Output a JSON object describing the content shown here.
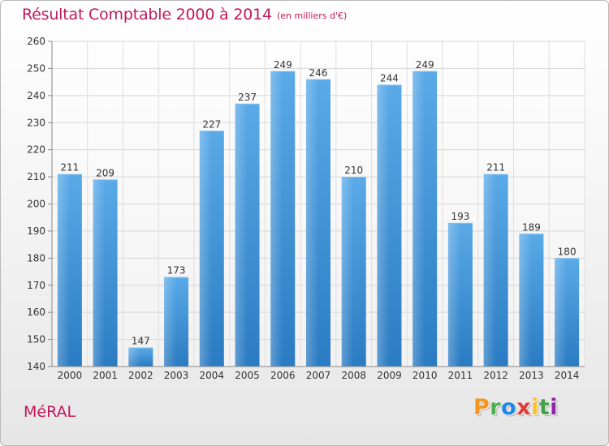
{
  "title": "Résultat Comptable 2000 à 2014",
  "subtitle": "(en milliers d'€)",
  "commune": "MéRAL",
  "logo": {
    "letters": [
      "P",
      "r",
      "o",
      "x",
      "i",
      "t",
      "i"
    ],
    "colors": [
      "#f7941d",
      "#4caf50",
      "#1e88e5",
      "#e53935",
      "#fbc02d",
      "#43a047",
      "#8e24aa"
    ]
  },
  "chart_data": {
    "type": "bar",
    "title": "Résultat Comptable 2000 à 2014",
    "subtitle": "(en milliers d'€)",
    "categories": [
      "2000",
      "2001",
      "2002",
      "2003",
      "2004",
      "2005",
      "2006",
      "2007",
      "2008",
      "2009",
      "2010",
      "2011",
      "2012",
      "2013",
      "2014"
    ],
    "values": [
      211,
      209,
      147,
      173,
      227,
      237,
      249,
      246,
      210,
      244,
      249,
      193,
      211,
      189,
      180
    ],
    "ylim": [
      140,
      260
    ],
    "yticks": [
      140,
      150,
      160,
      170,
      180,
      190,
      200,
      210,
      220,
      230,
      240,
      250,
      260
    ],
    "grid": true,
    "bar_color": "#4a9fe0"
  }
}
